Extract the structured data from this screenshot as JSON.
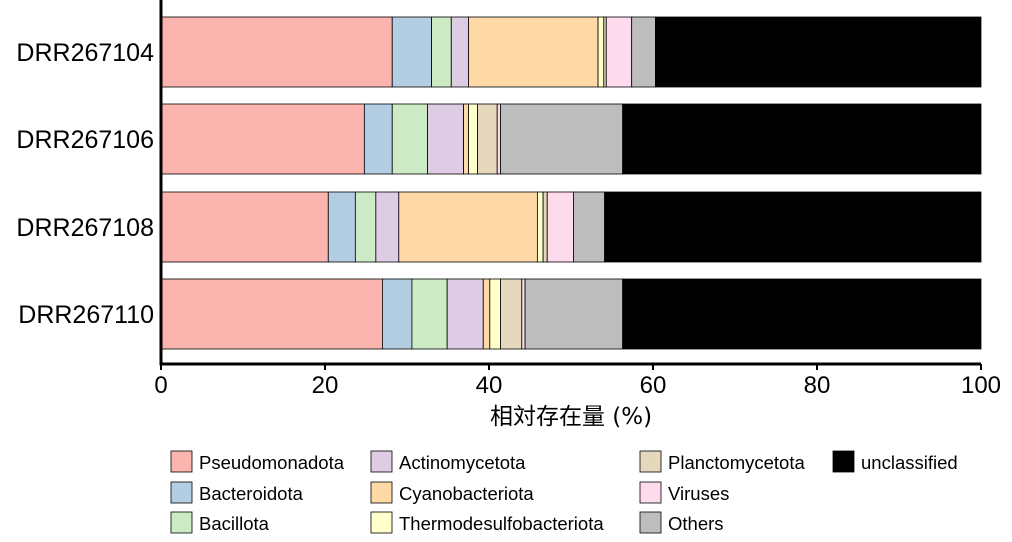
{
  "chart_data": {
    "type": "bar",
    "orientation": "horizontal",
    "stacked": true,
    "categories": [
      "DRR267104",
      "DRR267106",
      "DRR267108",
      "DRR267110"
    ],
    "series": [
      {
        "name": "Pseudomonadota",
        "color": "#fbb4ae",
        "values": [
          28.2,
          24.8,
          20.4,
          27.0
        ]
      },
      {
        "name": "Bacteroidota",
        "color": "#b3cde3",
        "values": [
          4.8,
          3.4,
          3.3,
          3.6
        ]
      },
      {
        "name": "Bacillota",
        "color": "#ccebc5",
        "values": [
          2.4,
          4.3,
          2.5,
          4.3
        ]
      },
      {
        "name": "Actinomycetota",
        "color": "#decbe4",
        "values": [
          2.1,
          4.4,
          2.8,
          4.4
        ]
      },
      {
        "name": "Cyanobacteriota",
        "color": "#fed9a6",
        "values": [
          15.8,
          0.6,
          16.9,
          0.8
        ]
      },
      {
        "name": "Thermodesulfobacteriota",
        "color": "#ffffcc",
        "values": [
          0.7,
          1.1,
          0.7,
          1.3
        ]
      },
      {
        "name": "Planctomycetota",
        "color": "#e5d8bd",
        "values": [
          0.3,
          2.4,
          0.5,
          2.6
        ]
      },
      {
        "name": "Viruses",
        "color": "#fddaec",
        "values": [
          3.1,
          0.4,
          3.2,
          0.4
        ]
      },
      {
        "name": "Others",
        "color": "#bdbdbd",
        "values": [
          2.9,
          14.9,
          3.8,
          11.9
        ]
      },
      {
        "name": "unclassified",
        "color": "#000000",
        "values": [
          39.7,
          43.7,
          45.9,
          43.7
        ]
      }
    ],
    "xlabel": "相対存在量 (%)",
    "ylabel": "",
    "xlim": [
      0,
      100
    ],
    "xticks": [
      "0",
      "20",
      "40",
      "60",
      "80",
      "100"
    ],
    "grid": false,
    "legend_position": "bottom",
    "legend_order": [
      "Pseudomonadota",
      "Bacteroidota",
      "Bacillota",
      "Actinomycetota",
      "Cyanobacteriota",
      "Thermodesulfobacteriota",
      "Planctomycetota",
      "Viruses",
      "Others",
      "unclassified"
    ]
  }
}
